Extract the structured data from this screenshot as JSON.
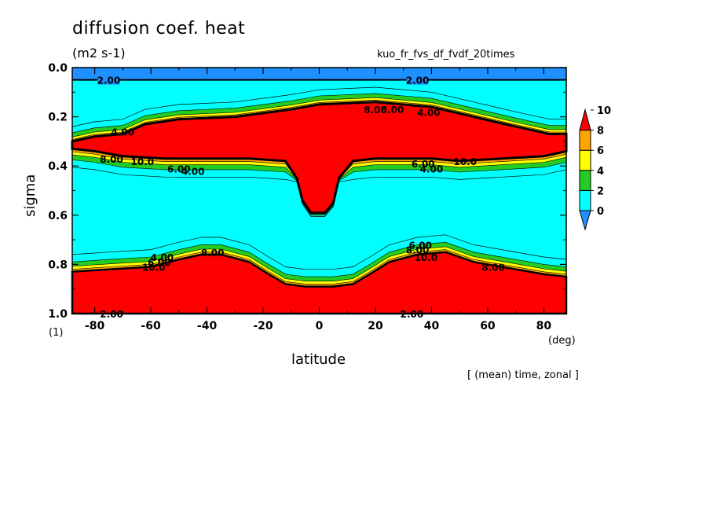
{
  "chart_data": {
    "type": "contour",
    "title": "diffusion coef. heat",
    "units": "(m2 s-1)",
    "run_name": "kuo_fr_fvs_df_fvdf_20times",
    "xlabel": "latitude",
    "x_unit": "(deg)",
    "ylabel": "sigma",
    "y_unit": "(1)",
    "footnote": "[ (mean) time, zonal ]",
    "xlim": [
      -88,
      88
    ],
    "ylim": [
      1.0,
      0.0
    ],
    "x_ticks": [
      -80,
      -60,
      -40,
      -20,
      0,
      20,
      40,
      60,
      80
    ],
    "y_ticks": [
      0.0,
      0.2,
      0.4,
      0.6,
      0.8,
      1.0
    ],
    "x_tick_labels": [
      "-80",
      "-60",
      "-40",
      "-20",
      "0",
      "20",
      "40",
      "60",
      "80"
    ],
    "y_tick_labels": [
      "0.0",
      "0.2",
      "0.4",
      "0.6",
      "0.8",
      "1.0"
    ],
    "colorbar": {
      "levels": [
        0,
        2,
        4,
        6,
        8,
        10
      ],
      "labels": [
        "0",
        "2",
        "4",
        "6",
        "8",
        "10"
      ],
      "colors": [
        "#1e90ff",
        "#00ffff",
        "#22cc22",
        "#ffff00",
        "#ffa500",
        "#ff0000"
      ]
    },
    "contour_labels": [
      {
        "text": "2.00",
        "lat": -75,
        "sigma": 0.05
      },
      {
        "text": "2.00",
        "lat": 35,
        "sigma": 0.05
      },
      {
        "text": "4.00",
        "lat": -70,
        "sigma": 0.26
      },
      {
        "text": "4.00",
        "lat": -45,
        "sigma": 0.42
      },
      {
        "text": "6.00",
        "lat": -50,
        "sigma": 0.41
      },
      {
        "text": "8.00",
        "lat": -74,
        "sigma": 0.37
      },
      {
        "text": "10.0",
        "lat": -63,
        "sigma": 0.38
      },
      {
        "text": "4.00",
        "lat": 40,
        "sigma": 0.41
      },
      {
        "text": "6.00",
        "lat": 37,
        "sigma": 0.39
      },
      {
        "text": "10.0",
        "lat": 52,
        "sigma": 0.38
      },
      {
        "text": "8.00",
        "lat": 20,
        "sigma": 0.17
      },
      {
        "text": "6.00",
        "lat": 26,
        "sigma": 0.17
      },
      {
        "text": "4.00",
        "lat": 39,
        "sigma": 0.18
      },
      {
        "text": "4.00",
        "lat": -56,
        "sigma": 0.77
      },
      {
        "text": "6.00",
        "lat": -57,
        "sigma": 0.79
      },
      {
        "text": "10.0",
        "lat": -59,
        "sigma": 0.81
      },
      {
        "text": "8.00",
        "lat": -38,
        "sigma": 0.75
      },
      {
        "text": "6.00",
        "lat": 36,
        "sigma": 0.72
      },
      {
        "text": "8.00",
        "lat": 35,
        "sigma": 0.74
      },
      {
        "text": "10.0",
        "lat": 38,
        "sigma": 0.77
      },
      {
        "text": "8.00",
        "lat": 62,
        "sigma": 0.81
      },
      {
        "text": "2.00",
        "lat": -74,
        "sigma": 1.0
      },
      {
        "text": "2.00",
        "lat": 33,
        "sigma": 1.0
      }
    ],
    "regions": [
      {
        "name": "top layer",
        "value_range": "0-2",
        "color": "#1e90ff",
        "sigma_range": [
          0.0,
          0.05
        ]
      },
      {
        "name": "upper jet core",
        "value_range": ">10",
        "color": "#ff0000",
        "sigma_range": [
          0.15,
          0.6
        ],
        "boundary_top": [
          [
            -88,
            0.3
          ],
          [
            -80,
            0.28
          ],
          [
            -70,
            0.27
          ],
          [
            -62,
            0.23
          ],
          [
            -50,
            0.21
          ],
          [
            -30,
            0.2
          ],
          [
            -10,
            0.17
          ],
          [
            0,
            0.15
          ],
          [
            20,
            0.14
          ],
          [
            40,
            0.16
          ],
          [
            55,
            0.2
          ],
          [
            70,
            0.24
          ],
          [
            82,
            0.27
          ],
          [
            88,
            0.27
          ]
        ],
        "boundary_bottom": [
          [
            88,
            0.34
          ],
          [
            80,
            0.36
          ],
          [
            65,
            0.37
          ],
          [
            50,
            0.38
          ],
          [
            40,
            0.37
          ],
          [
            20,
            0.37
          ],
          [
            12,
            0.38
          ],
          [
            7,
            0.45
          ],
          [
            5,
            0.55
          ],
          [
            2,
            0.59
          ],
          [
            -3,
            0.59
          ],
          [
            -6,
            0.54
          ],
          [
            -8,
            0.45
          ],
          [
            -12,
            0.38
          ],
          [
            -25,
            0.37
          ],
          [
            -40,
            0.37
          ],
          [
            -55,
            0.37
          ],
          [
            -70,
            0.36
          ],
          [
            -80,
            0.34
          ],
          [
            -88,
            0.33
          ]
        ]
      },
      {
        "name": "boundary layer",
        "value_range": ">10",
        "color": "#ff0000",
        "sigma_range": [
          0.74,
          1.0
        ],
        "boundary_top": [
          [
            -88,
            0.83
          ],
          [
            -75,
            0.82
          ],
          [
            -60,
            0.81
          ],
          [
            -50,
            0.78
          ],
          [
            -42,
            0.76
          ],
          [
            -35,
            0.76
          ],
          [
            -25,
            0.79
          ],
          [
            -18,
            0.84
          ],
          [
            -12,
            0.88
          ],
          [
            -5,
            0.89
          ],
          [
            5,
            0.89
          ],
          [
            12,
            0.88
          ],
          [
            18,
            0.84
          ],
          [
            25,
            0.79
          ],
          [
            35,
            0.76
          ],
          [
            45,
            0.75
          ],
          [
            55,
            0.79
          ],
          [
            65,
            0.81
          ],
          [
            80,
            0.84
          ],
          [
            88,
            0.85
          ]
        ]
      }
    ]
  }
}
